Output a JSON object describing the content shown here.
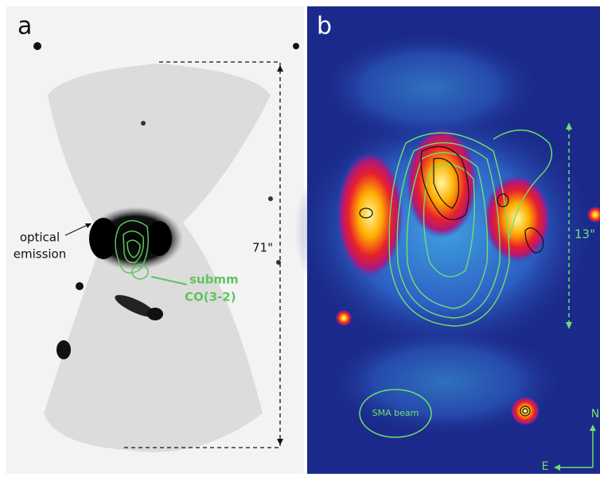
{
  "panel_a": {
    "label": "a",
    "scale_label": "71\"",
    "optical_label": [
      "optical",
      "emission"
    ],
    "submm_label": [
      "submm",
      "CO(3-2)"
    ]
  },
  "panel_b": {
    "label": "b",
    "scale_label": "13\"",
    "beam_label": "SMA beam",
    "compass": {
      "north": "N",
      "east": "E"
    }
  }
}
